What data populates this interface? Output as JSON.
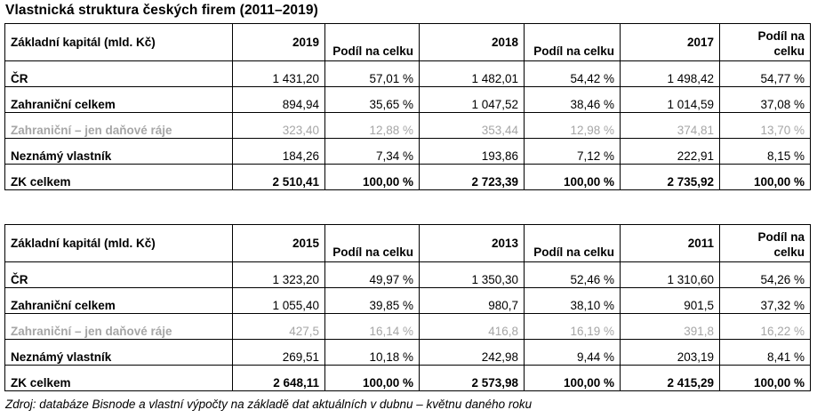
{
  "title": "Vlastnická struktura českých firem (2011–2019)",
  "tables": [
    {
      "header": {
        "label": "Základní kapitál (mld. Kč)",
        "cols": [
          {
            "year": "2019",
            "share": "Podíl na celku"
          },
          {
            "year": "2018",
            "share": "Podíl na celku"
          },
          {
            "year": "2017",
            "share": "Podíl na celku"
          }
        ]
      },
      "rows": [
        {
          "name": "ČR",
          "cells": [
            "1 431,20",
            "57,01 %",
            "1 482,01",
            "54,42 %",
            "1 498,42",
            "54,77 %"
          ]
        },
        {
          "name": "Zahraniční celkem",
          "cells": [
            "894,94",
            "35,65 %",
            "1 047,52",
            "38,46 %",
            "1 014,59",
            "37,08 %"
          ]
        },
        {
          "name": "Zahraniční – jen daňové ráje",
          "cells": [
            "323,40",
            "12,88 %",
            "353,44",
            "12,98 %",
            "374,81",
            "13,70 %"
          ]
        },
        {
          "name": "Neznámý vlastník",
          "cells": [
            "184,26",
            "7,34 %",
            "193,86",
            "7,12 %",
            "222,91",
            "8,15 %"
          ]
        },
        {
          "name": "ZK celkem",
          "cells": [
            "2 510,41",
            "100,00 %",
            "2 723,39",
            "100,00 %",
            "2 735,92",
            "100,00 %"
          ]
        }
      ]
    },
    {
      "header": {
        "label": "Základní kapitál (mld. Kč)",
        "cols": [
          {
            "year": "2015",
            "share": "Podíl na celku"
          },
          {
            "year": "2013",
            "share": "Podíl na celku"
          },
          {
            "year": "2011",
            "share": "Podíl na celku"
          }
        ]
      },
      "rows": [
        {
          "name": "ČR",
          "cells": [
            "1 323,20",
            "49,97 %",
            "1 350,30",
            "52,46 %",
            "1 310,60",
            "54,26 %"
          ]
        },
        {
          "name": "Zahraniční celkem",
          "cells": [
            "1 055,40",
            "39,85 %",
            "980,7",
            "38,10 %",
            "901,5",
            "37,32 %"
          ]
        },
        {
          "name": "Zahraniční – jen daňové ráje",
          "cells": [
            "427,5",
            "16,14 %",
            "416,8",
            "16,19 %",
            "391,8",
            "16,22 %"
          ]
        },
        {
          "name": "Neznámý vlastník",
          "cells": [
            "269,51",
            "10,18 %",
            "242,98",
            "9,44 %",
            "203,19",
            "8,41 %"
          ]
        },
        {
          "name": "ZK celkem",
          "cells": [
            "2 648,11",
            "100,00 %",
            "2 573,98",
            "100,00 %",
            "2 415,29",
            "100,00 %"
          ]
        }
      ]
    }
  ],
  "source": "Zdroj: databáze Bisnode a vlastní výpočty na základě dat aktuálních v dubnu – květnu daného roku",
  "colors": {
    "muted_row_text": "#a6a6a6",
    "border": "#000000"
  }
}
